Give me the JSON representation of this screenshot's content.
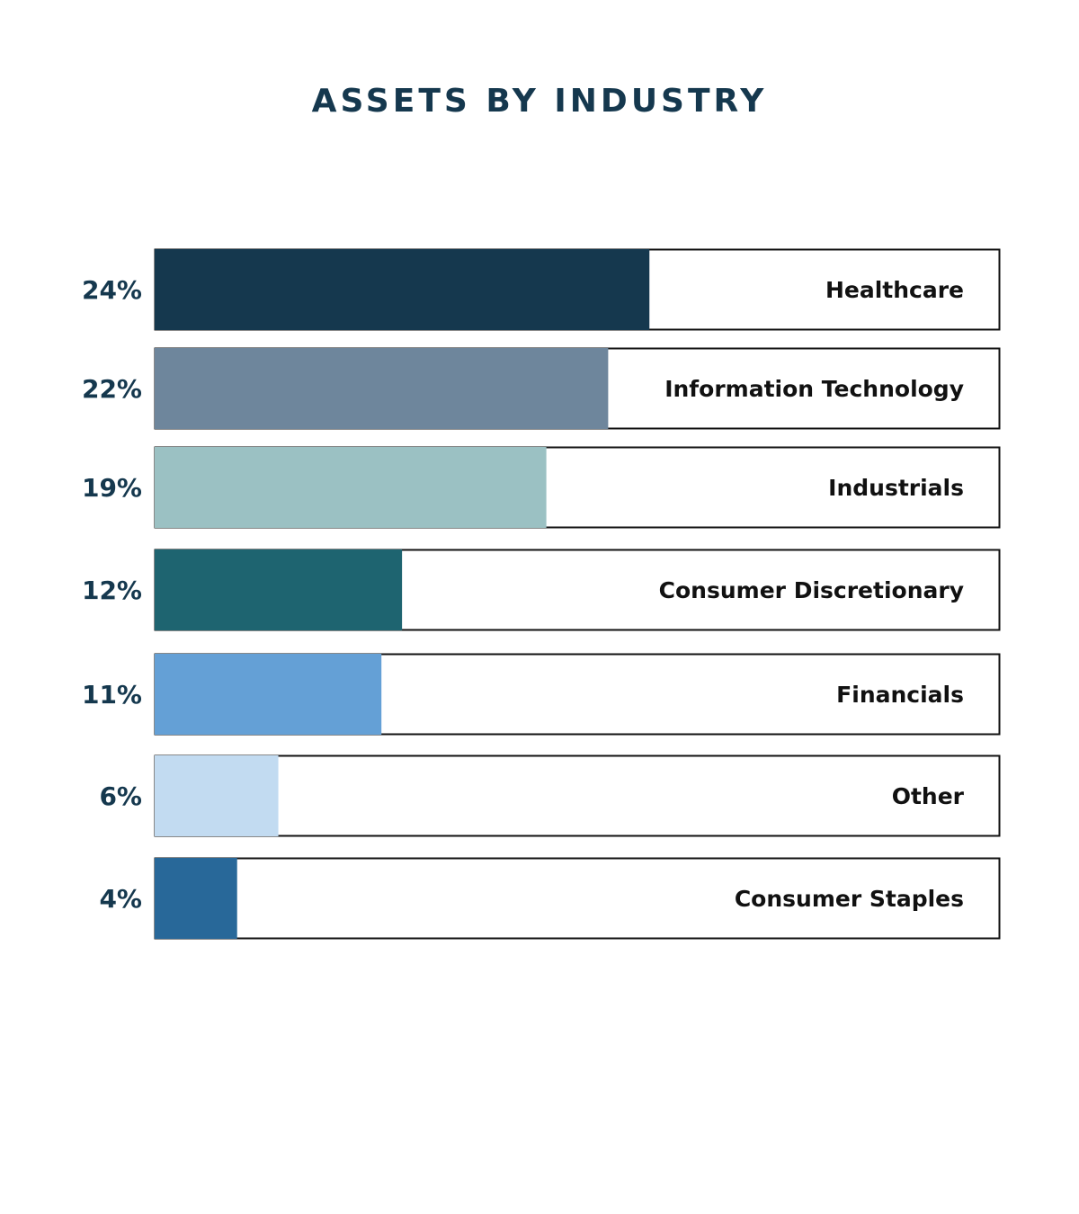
{
  "chart_data": {
    "type": "bar",
    "orientation": "horizontal",
    "title": "ASSETS BY INDUSTRY",
    "xlabel": "",
    "ylabel": "",
    "xlim": [
      0,
      41
    ],
    "grid": false,
    "legend": "none",
    "categories": [
      "Healthcare",
      "Information Technology",
      "Industrials",
      "Consumer Discretionary",
      "Financials",
      "Other",
      "Consumer Staples"
    ],
    "values": [
      24,
      22,
      19,
      12,
      11,
      6,
      4
    ],
    "value_labels": [
      "24%",
      "22%",
      "19%",
      "12%",
      "11%",
      "6%",
      "4%"
    ],
    "colors": [
      "#15384e",
      "#6e869c",
      "#9bc1c3",
      "#1e6470",
      "#64a0d6",
      "#c2dbf1",
      "#286899"
    ]
  }
}
